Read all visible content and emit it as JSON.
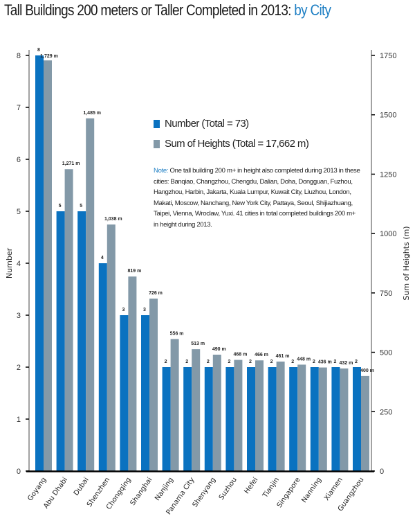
{
  "title": {
    "main": "Tall Buildings 200 meters or Taller Completed in 2013:",
    "accent": "by City"
  },
  "legend": [
    {
      "label": "Number (Total = 73)",
      "color": "#0a72c0"
    },
    {
      "label": "Sum of Heights (Total = 17,662 m)",
      "color": "#8399a8"
    }
  ],
  "note": {
    "prefix": "Note:",
    "text": " One tall building 200 m+ in height also completed during 2013 in these cities: Banqiao,  Changzhou, Chengdu, Dalian, Doha, Dongguan, Fuzhou, Hangzhou, Harbin, Jakarta, Kuala Lumpur, Kuwait City, Liuzhou, London, Makati, Moscow, Nanchang, New York City, Pattaya, Seoul, Shijiazhuang, Taipei, Vienna, Wroclaw, Yuxi. 41 cities in total completed buildings 200 m+ in height during 2013."
  },
  "chart_data": {
    "type": "bar",
    "title": "Tall Buildings 200 meters or Taller Completed in 2013: by City",
    "xlabel": "",
    "ylabel": "Number",
    "y2label": "Sum of Heights (m)",
    "ylim": [
      0,
      8
    ],
    "y2lim": [
      0,
      1750
    ],
    "yticks": [
      "0",
      "1",
      "2",
      "3",
      "4",
      "5",
      "6",
      "7",
      "8"
    ],
    "y2ticks": [
      "0",
      "250",
      "500",
      "750",
      "1000",
      "1250",
      "1500",
      "1750"
    ],
    "grid": false,
    "legend_position": "center-right",
    "categories": [
      "Goyang",
      "Abu Dhabi",
      "Dubai",
      "Shenzhen",
      "Chongqing",
      "Shanghai",
      "Nanjing",
      "Panama City",
      "Shenyang",
      "Suzhou",
      "Hefei",
      "Tianjin",
      "Singapore",
      "Nanning",
      "Xiamen",
      "Guangzhou"
    ],
    "series": [
      {
        "name": "Number (Total = 73)",
        "axis": "left",
        "color": "#0a72c0",
        "values": [
          8,
          5,
          5,
          4,
          3,
          3,
          2,
          2,
          2,
          2,
          2,
          2,
          2,
          2,
          2,
          2
        ],
        "labels": [
          "8",
          "5",
          "5",
          "4",
          "3",
          "3",
          "2",
          "2",
          "2",
          "2",
          "2",
          "2",
          "2",
          "2",
          "2",
          "2"
        ]
      },
      {
        "name": "Sum of Heights (Total = 17,662 m)",
        "axis": "right",
        "color": "#8399a8",
        "values": [
          1729,
          1271,
          1485,
          1038,
          819,
          726,
          556,
          513,
          490,
          468,
          466,
          461,
          448,
          436,
          432,
          400
        ],
        "labels": [
          "1,729 m",
          "1,271 m",
          "1,485 m",
          "1,038 m",
          "819 m",
          "726 m",
          "556 m",
          "513 m",
          "490 m",
          "468 m",
          "466 m",
          "461 m",
          "448 m",
          "436 m",
          "432 m",
          "400 m"
        ]
      }
    ]
  }
}
